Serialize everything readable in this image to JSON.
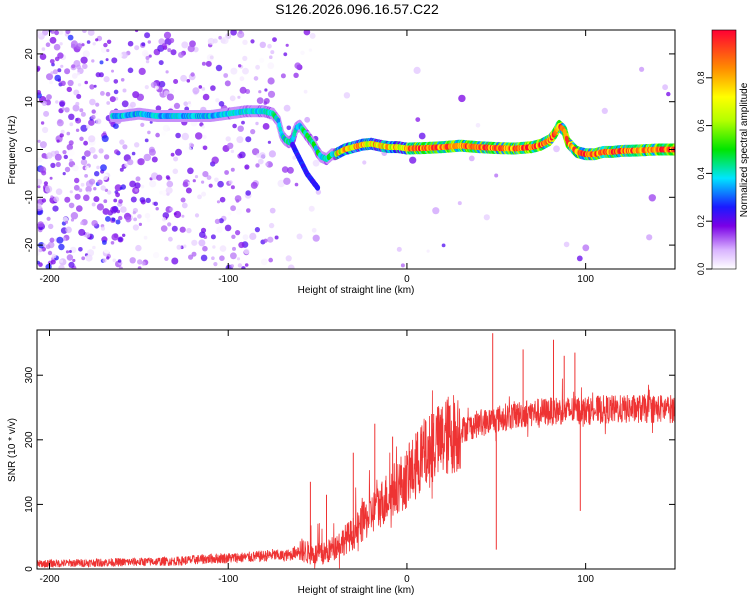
{
  "title": "S126.2026.096.16.57.C22",
  "chart_data": [
    {
      "type": "heatmap",
      "xlabel": "Height of straight line (km)",
      "ylabel": "Frequency (Hz)",
      "xlim": [
        -207,
        150
      ],
      "ylim": [
        -25,
        25
      ],
      "xticks": [
        -200,
        -100,
        0,
        100
      ],
      "yticks": [
        -20,
        -10,
        0,
        10,
        20
      ],
      "colorbar": {
        "label": "Normalized spectral amplitude",
        "range": [
          0,
          1
        ],
        "ticks": [
          "0.0",
          "0.2",
          "0.4",
          "0.6",
          "0.8"
        ],
        "tick_values": [
          0,
          0.2,
          0.4,
          0.6,
          0.8
        ]
      },
      "ridge": {
        "x": [
          -160,
          -150,
          -140,
          -130,
          -120,
          -110,
          -100,
          -90,
          -80,
          -75,
          -72,
          -70,
          -68,
          -66,
          -64,
          -62,
          -60,
          -58,
          -55,
          -52,
          -50,
          -48,
          -45,
          -42,
          -40,
          -35,
          -30,
          -25,
          -20,
          -15,
          -10,
          -5,
          0,
          10,
          20,
          30,
          40,
          50,
          60,
          70,
          75,
          80,
          83,
          85,
          88,
          90,
          95,
          100,
          105,
          110,
          115,
          120,
          130,
          140,
          150
        ],
        "y": [
          7,
          7.5,
          7,
          7,
          7,
          7,
          7.5,
          8,
          8,
          7.5,
          6,
          3,
          2,
          1.5,
          2,
          4.5,
          5,
          4,
          2.5,
          1,
          -0.5,
          -1.5,
          -2,
          -1,
          -1,
          0,
          0.5,
          1,
          1.2,
          0.8,
          0.5,
          0.5,
          0.2,
          0.3,
          0.5,
          0.8,
          0.5,
          0.3,
          0.2,
          0.5,
          1,
          2,
          3.5,
          5,
          4,
          1.5,
          -0.5,
          -1,
          -1,
          -0.5,
          -0.5,
          -0.3,
          -0.2,
          0,
          0
        ]
      },
      "branch": {
        "x": [
          -64,
          -60,
          -56,
          -52,
          -50
        ],
        "y": [
          1,
          -2,
          -5,
          -7,
          -8
        ]
      }
    },
    {
      "type": "line",
      "xlabel": "Height of straight line (km)",
      "ylabel": "SNR (10 * v/v)",
      "xlim": [
        -207,
        150
      ],
      "ylim": [
        0,
        370
      ],
      "xticks": [
        -200,
        -100,
        0,
        100
      ],
      "yticks": [
        0,
        100,
        200,
        300
      ],
      "color": "#ee3333",
      "series": [
        {
          "name": "SNR",
          "x": [
            -207,
            -190,
            -170,
            -150,
            -130,
            -120,
            -110,
            -100,
            -90,
            -80,
            -75,
            -70,
            -65,
            -60,
            -55,
            -50,
            -45,
            -40,
            -35,
            -30,
            -25,
            -20,
            -15,
            -10,
            -5,
            0,
            5,
            10,
            15,
            20,
            25,
            30,
            35,
            40,
            45,
            50,
            55,
            60,
            65,
            70,
            75,
            80,
            85,
            90,
            95,
            100,
            105,
            110,
            115,
            120,
            130,
            140,
            150
          ],
          "y": [
            8,
            9,
            10,
            11,
            12,
            14,
            16,
            17,
            18,
            20,
            22,
            20,
            22,
            30,
            25,
            22,
            25,
            35,
            45,
            55,
            70,
            85,
            100,
            115,
            130,
            140,
            160,
            175,
            190,
            200,
            210,
            215,
            220,
            225,
            228,
            232,
            235,
            238,
            240,
            242,
            243,
            244,
            245,
            245,
            246,
            245,
            246,
            247,
            247,
            247,
            248,
            248,
            248
          ]
        }
      ],
      "spikes": [
        {
          "x": -54,
          "y": 135
        },
        {
          "x": -45,
          "y": 115
        },
        {
          "x": -30,
          "y": 180
        },
        {
          "x": -18,
          "y": 225
        },
        {
          "x": -8,
          "y": 205
        },
        {
          "x": 5,
          "y": 210
        },
        {
          "x": 15,
          "y": 240
        },
        {
          "x": 48,
          "y": 365
        },
        {
          "x": 50,
          "y": 30
        },
        {
          "x": 65,
          "y": 340
        },
        {
          "x": 82,
          "y": 355
        },
        {
          "x": 88,
          "y": 330
        },
        {
          "x": 94,
          "y": 335
        },
        {
          "x": 97,
          "y": 90
        }
      ]
    }
  ]
}
